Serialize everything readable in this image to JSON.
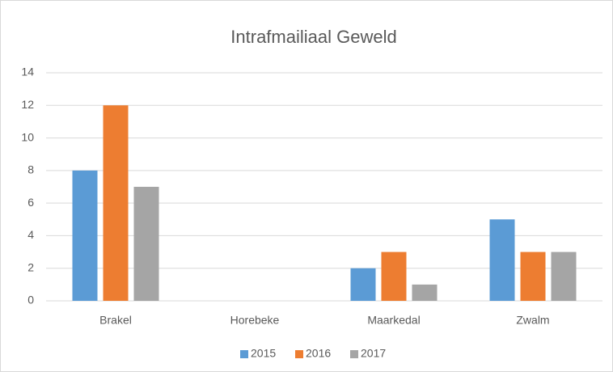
{
  "chart_data": {
    "type": "bar",
    "title": "Intrafmailiaal Geweld",
    "categories": [
      "Brakel",
      "Horebeke",
      "Maarkedal",
      "Zwalm"
    ],
    "series": [
      {
        "name": "2015",
        "color": "#5b9bd5",
        "values": [
          8,
          0,
          2,
          5
        ]
      },
      {
        "name": "2016",
        "color": "#ed7d31",
        "values": [
          12,
          0,
          3,
          3
        ]
      },
      {
        "name": "2017",
        "color": "#a5a5a5",
        "values": [
          7,
          0,
          1,
          3
        ]
      }
    ],
    "ylim": [
      0,
      14
    ],
    "yticks": [
      0,
      2,
      4,
      6,
      8,
      10,
      12,
      14
    ],
    "grid": true,
    "legend": "bottom"
  }
}
